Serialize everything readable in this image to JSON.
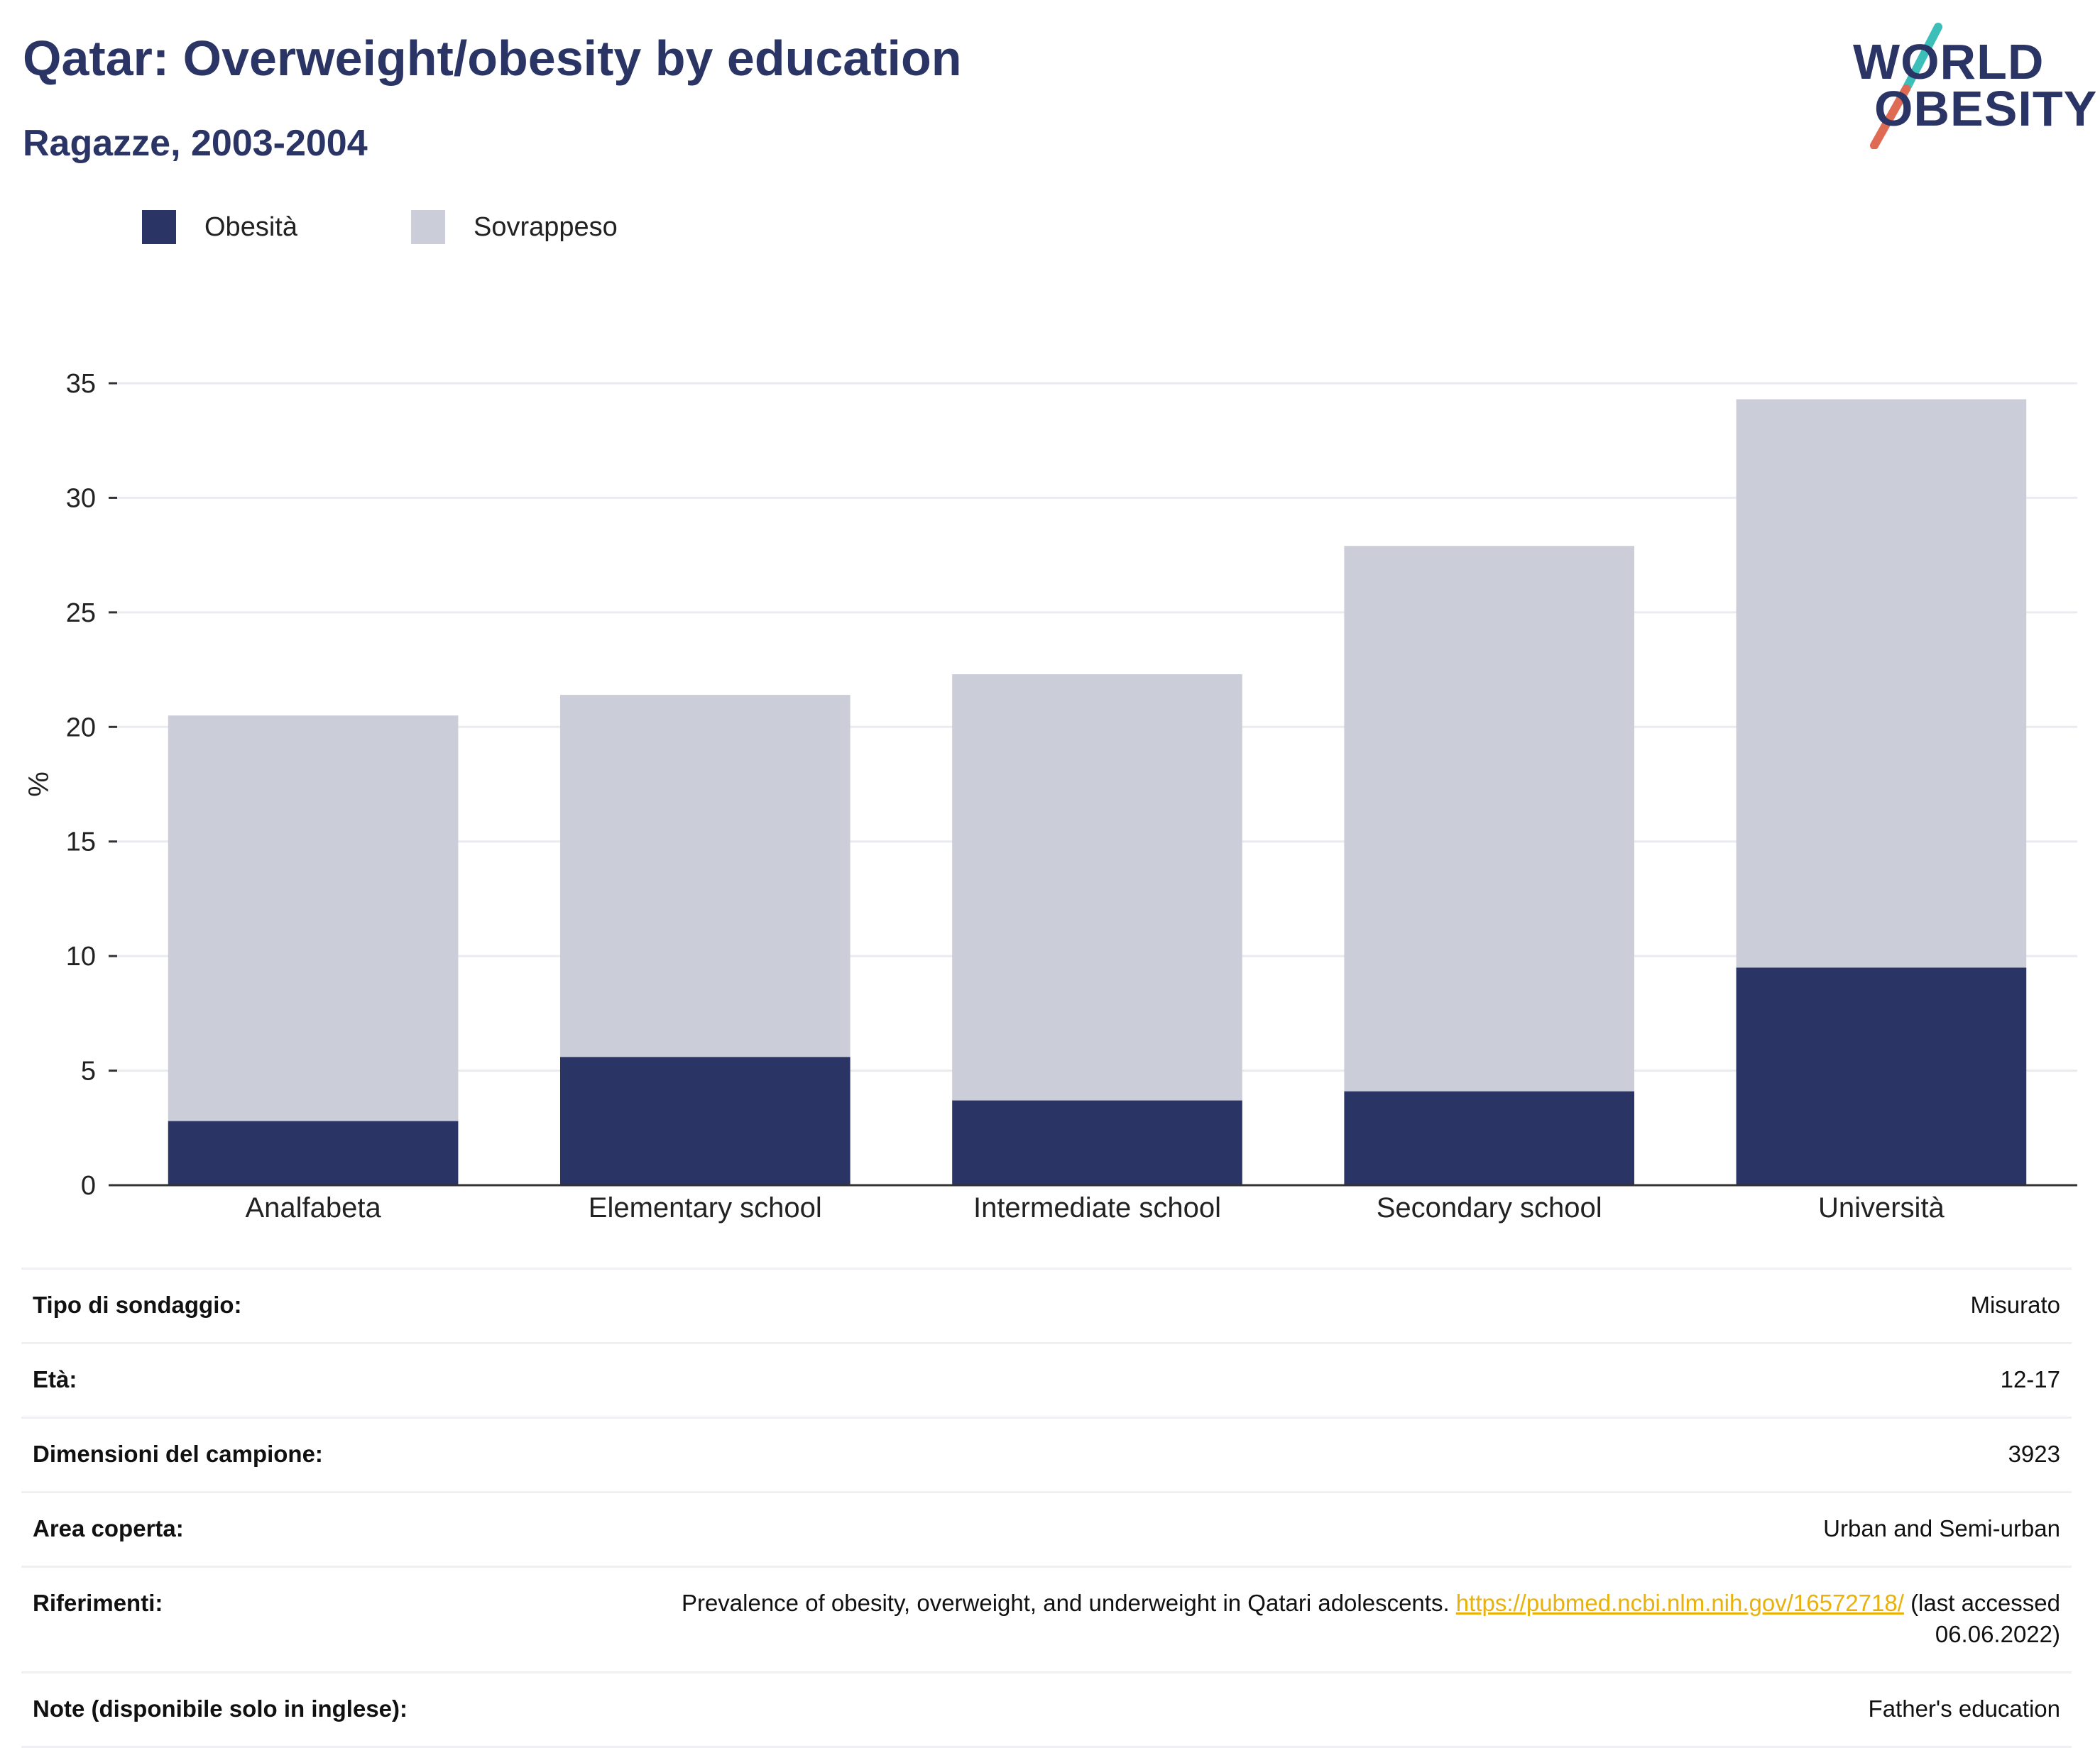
{
  "header": {
    "title": "Qatar: Overweight/obesity by education",
    "subtitle": "Ragazze, 2003-2004"
  },
  "logo": {
    "line1": "WORLD",
    "line2": "OBESITY"
  },
  "colors": {
    "obesity": "#2b3565",
    "overweight": "#cbcdd9",
    "accent_teal": "#3bbfb8",
    "accent_red": "#e06b55",
    "link": "#e8b10c"
  },
  "chart_data": {
    "type": "bar",
    "stacked": true,
    "categories": [
      "Analfabeta",
      "Elementary school",
      "Intermediate school",
      "Secondary school",
      "Università"
    ],
    "series": [
      {
        "name": "Obesità",
        "values": [
          2.8,
          5.6,
          3.7,
          4.1,
          9.5
        ]
      },
      {
        "name": "Sovrappeso",
        "values": [
          17.7,
          15.8,
          18.6,
          23.8,
          24.8
        ]
      }
    ],
    "totals": [
      20.5,
      21.4,
      22.3,
      27.9,
      34.3
    ],
    "ylabel": "%",
    "xlabel": "",
    "ylim": [
      0,
      35
    ],
    "yticks": [
      0,
      5,
      10,
      15,
      20,
      25,
      30,
      35
    ],
    "grid": true,
    "legend_position": "top-left"
  },
  "info": [
    {
      "key": "Tipo di sondaggio:",
      "value": "Misurato"
    },
    {
      "key": "Età:",
      "value": "12-17"
    },
    {
      "key": "Dimensioni del campione:",
      "value": "3923"
    },
    {
      "key": "Area coperta:",
      "value": "Urban and Semi-urban"
    },
    {
      "key": "Riferimenti:",
      "value_pre": "Prevalence of obesity, overweight, and underweight in Qatari adolescents.",
      "link": "https://pubmed.ncbi.nlm.nih.gov/16572718/",
      "value_post": "(last accessed 06.06.2022)"
    },
    {
      "key": "Note (disponibile solo in inglese):",
      "value": "Father's education"
    }
  ]
}
